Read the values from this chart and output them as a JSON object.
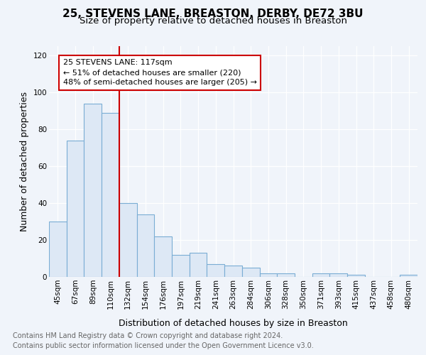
{
  "title": "25, STEVENS LANE, BREASTON, DERBY, DE72 3BU",
  "subtitle": "Size of property relative to detached houses in Breaston",
  "xlabel": "Distribution of detached houses by size in Breaston",
  "ylabel": "Number of detached properties",
  "categories": [
    "45sqm",
    "67sqm",
    "89sqm",
    "110sqm",
    "132sqm",
    "154sqm",
    "176sqm",
    "197sqm",
    "219sqm",
    "241sqm",
    "263sqm",
    "284sqm",
    "306sqm",
    "328sqm",
    "350sqm",
    "371sqm",
    "393sqm",
    "415sqm",
    "437sqm",
    "458sqm",
    "480sqm"
  ],
  "values": [
    30,
    74,
    94,
    89,
    40,
    34,
    22,
    12,
    13,
    7,
    6,
    5,
    2,
    2,
    0,
    2,
    2,
    1,
    0,
    0,
    1
  ],
  "bar_color": "#dde8f5",
  "bar_edge_color": "#7aadd4",
  "bar_edge_width": 0.8,
  "vline_x": 3.5,
  "vline_color": "#cc0000",
  "annotation_line1": "25 STEVENS LANE: 117sqm",
  "annotation_line2": "← 51% of detached houses are smaller (220)",
  "annotation_line3": "48% of semi-detached houses are larger (205) →",
  "annotation_box_color": "#ffffff",
  "annotation_box_edge": "#cc0000",
  "ylim": [
    0,
    125
  ],
  "yticks": [
    0,
    20,
    40,
    60,
    80,
    100,
    120
  ],
  "footnote1": "Contains HM Land Registry data © Crown copyright and database right 2024.",
  "footnote2": "Contains public sector information licensed under the Open Government Licence v3.0.",
  "bg_color": "#f0f4fa",
  "plot_bg_color": "#f0f4fa",
  "grid_color": "#ffffff",
  "title_fontsize": 11,
  "subtitle_fontsize": 9.5,
  "axis_label_fontsize": 9,
  "tick_fontsize": 7.5,
  "annotation_fontsize": 8,
  "footnote_fontsize": 7
}
